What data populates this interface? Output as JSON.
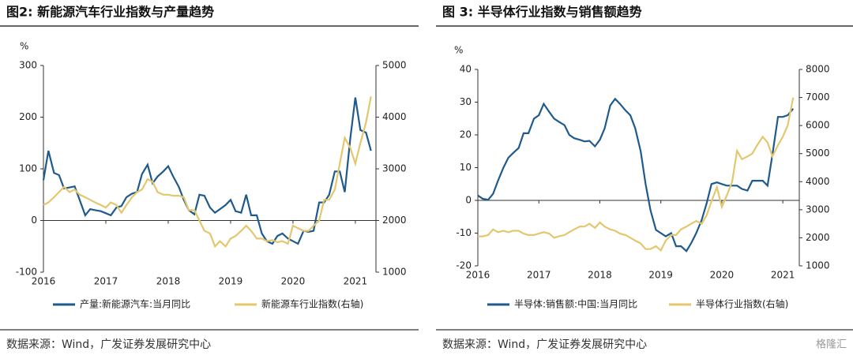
{
  "chart_data": [
    {
      "type": "line",
      "title": "图2: 新能源汽车行业指数与产量趋势",
      "source": "数据来源：Wind，广发证券发展研究中心",
      "y_label": "%",
      "xlim": [
        2016,
        2021.33
      ],
      "xticks": [
        2016,
        2017,
        2018,
        2019,
        2020,
        2021
      ],
      "ylim": [
        -100,
        300
      ],
      "yticks": [
        -100,
        0,
        100,
        200,
        300
      ],
      "y2lim": [
        1000,
        5000
      ],
      "y2ticks": [
        1000,
        2000,
        3000,
        4000,
        5000
      ],
      "x": [
        2016.0,
        2016.08,
        2016.17,
        2016.25,
        2016.33,
        2016.42,
        2016.5,
        2016.58,
        2016.67,
        2016.75,
        2016.83,
        2016.92,
        2017.0,
        2017.08,
        2017.17,
        2017.25,
        2017.33,
        2017.42,
        2017.5,
        2017.58,
        2017.67,
        2017.75,
        2017.83,
        2017.92,
        2018.0,
        2018.08,
        2018.17,
        2018.25,
        2018.33,
        2018.42,
        2018.5,
        2018.58,
        2018.67,
        2018.75,
        2018.83,
        2018.92,
        2019.0,
        2019.08,
        2019.17,
        2019.25,
        2019.33,
        2019.42,
        2019.5,
        2019.58,
        2019.67,
        2019.75,
        2019.83,
        2019.92,
        2020.0,
        2020.08,
        2020.17,
        2020.25,
        2020.33,
        2020.42,
        2020.5,
        2020.58,
        2020.67,
        2020.75,
        2020.83,
        2020.92,
        2021.0,
        2021.08,
        2021.17,
        2021.25
      ],
      "series": [
        {
          "name": "产量:新能源汽车:当月同比",
          "color": "#1f5a8c",
          "values": [
            78,
            135,
            92,
            88,
            62,
            64,
            66,
            40,
            10,
            22,
            20,
            18,
            14,
            10,
            25,
            28,
            45,
            52,
            55,
            90,
            108,
            72,
            85,
            95,
            105,
            85,
            65,
            40,
            20,
            12,
            50,
            48,
            25,
            15,
            22,
            30,
            40,
            18,
            15,
            50,
            10,
            10,
            -25,
            -40,
            -45,
            -30,
            -25,
            -35,
            -40,
            -45,
            -20,
            -22,
            -20,
            35,
            35,
            50,
            95,
            95,
            55,
            160,
            238,
            175,
            170,
            135
          ]
        },
        {
          "name": "新能源车行业指数(右轴)",
          "color": "#e3c76f",
          "axis": "y2",
          "values": [
            2300,
            2350,
            2450,
            2550,
            2650,
            2550,
            2600,
            2500,
            2450,
            2400,
            2350,
            2300,
            2250,
            2350,
            2300,
            2150,
            2300,
            2450,
            2550,
            2600,
            2800,
            2750,
            2550,
            2500,
            2500,
            2480,
            2480,
            2450,
            2200,
            2200,
            2000,
            1800,
            1750,
            1500,
            1600,
            1500,
            1650,
            1700,
            1800,
            1900,
            1800,
            1650,
            1650,
            1600,
            1620,
            1580,
            1600,
            1550,
            1900,
            1850,
            1800,
            1800,
            1900,
            2000,
            2400,
            2400,
            2600,
            3100,
            3600,
            3400,
            3100,
            3500,
            3900,
            4400
          ]
        }
      ]
    },
    {
      "type": "line",
      "title": "图 3: 半导体行业指数与销售额趋势",
      "source": "数据来源：Wind，广发证券发展研究中心",
      "y_label": "%",
      "watermark": "格隆汇",
      "xlim": [
        2016,
        2021.27
      ],
      "xticks": [
        2016,
        2017,
        2018,
        2019,
        2020,
        2021
      ],
      "ylim": [
        -20,
        40
      ],
      "yticks": [
        -20,
        -10,
        0,
        10,
        20,
        30,
        40
      ],
      "y2lim": [
        1000,
        8000
      ],
      "y2ticks": [
        1000,
        2000,
        3000,
        4000,
        5000,
        6000,
        7000,
        8000
      ],
      "x": [
        2016.0,
        2016.08,
        2016.17,
        2016.25,
        2016.33,
        2016.42,
        2016.5,
        2016.58,
        2016.67,
        2016.75,
        2016.83,
        2016.92,
        2017.0,
        2017.08,
        2017.17,
        2017.25,
        2017.33,
        2017.42,
        2017.5,
        2017.58,
        2017.67,
        2017.75,
        2017.83,
        2017.92,
        2018.0,
        2018.08,
        2018.17,
        2018.25,
        2018.33,
        2018.42,
        2018.5,
        2018.58,
        2018.67,
        2018.75,
        2018.83,
        2018.92,
        2019.0,
        2019.08,
        2019.17,
        2019.25,
        2019.33,
        2019.42,
        2019.5,
        2019.58,
        2019.67,
        2019.75,
        2019.83,
        2019.92,
        2020.0,
        2020.08,
        2020.17,
        2020.25,
        2020.33,
        2020.42,
        2020.5,
        2020.58,
        2020.67,
        2020.75,
        2020.83,
        2020.92,
        2021.0,
        2021.08,
        2021.17
      ],
      "series": [
        {
          "name": "半导体:销售额:中国:当月同比",
          "color": "#1f5a8c",
          "values": [
            1.5,
            0.5,
            0.2,
            2,
            6,
            10,
            13,
            14.5,
            16,
            20.5,
            20.5,
            25,
            26,
            29.5,
            27,
            25,
            24,
            23,
            20,
            19,
            18.5,
            18,
            18.2,
            16.5,
            18.5,
            22,
            29,
            31,
            29.5,
            27.5,
            26,
            22,
            15,
            5,
            -3,
            -9,
            -10,
            -11,
            -10,
            -14,
            -14,
            -15.5,
            -13,
            -10,
            -6,
            -1,
            5,
            5.5,
            5,
            4.5,
            4.5,
            4.5,
            3.5,
            3,
            6,
            6,
            6,
            4.5,
            14,
            25.5,
            25.5,
            26,
            28
          ]
        },
        {
          "name": "半导体行业指数(右轴)",
          "color": "#e3c76f",
          "axis": "y2",
          "values": [
            2050,
            2050,
            2100,
            2300,
            2200,
            2250,
            2200,
            2250,
            2250,
            2150,
            2100,
            2100,
            2150,
            2200,
            2150,
            2000,
            2050,
            2100,
            2200,
            2300,
            2400,
            2400,
            2500,
            2350,
            2550,
            2400,
            2300,
            2250,
            2150,
            2100,
            2000,
            1900,
            1800,
            1600,
            1600,
            1700,
            1550,
            1900,
            2100,
            2100,
            2300,
            2400,
            2500,
            2600,
            2500,
            2800,
            3300,
            3800,
            3100,
            3500,
            4000,
            5100,
            4800,
            4900,
            5000,
            5300,
            5600,
            5400,
            4900,
            5300,
            5600,
            6000,
            7000
          ]
        }
      ]
    }
  ]
}
